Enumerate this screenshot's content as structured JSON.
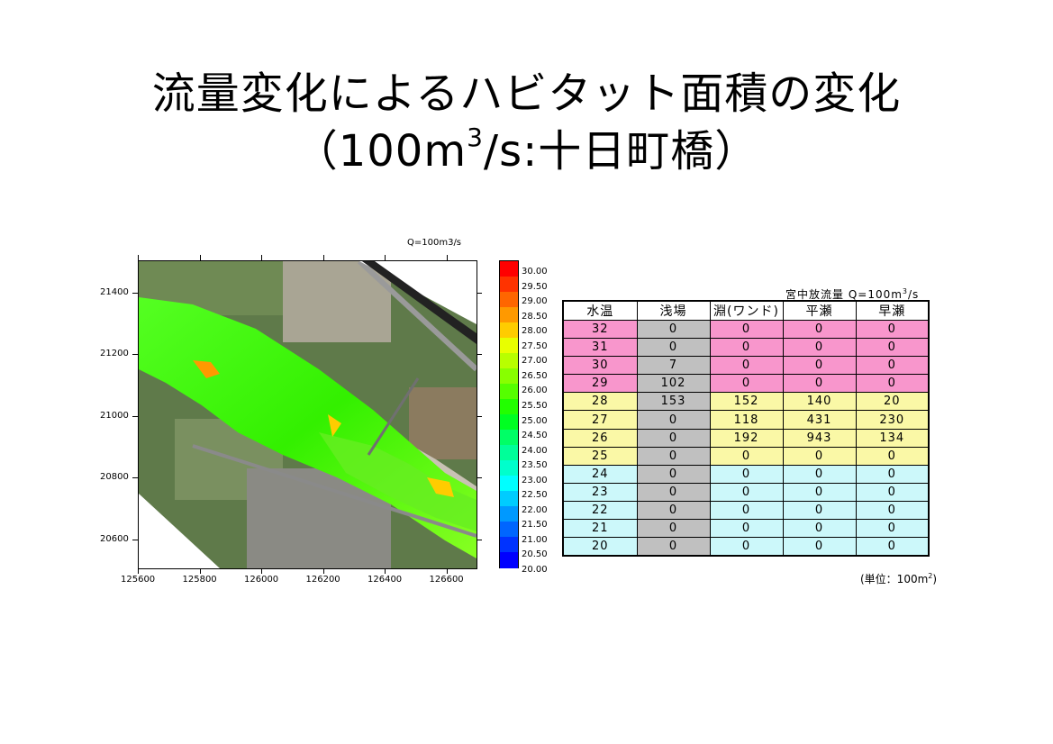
{
  "title": {
    "line1": "流量変化によるハビタット面積の変化",
    "line2_prefix": "（100m",
    "line2_sup": "3",
    "line2_suffix": "/s:十日町橋）"
  },
  "map": {
    "discharge_label": "Q=100m3/s",
    "x_ticks": [
      "125600",
      "125800",
      "126000",
      "126200",
      "126400",
      "126600"
    ],
    "y_ticks": [
      "21400",
      "21200",
      "21000",
      "20800",
      "20600"
    ]
  },
  "legend": {
    "labels": [
      "30.00",
      "29.50",
      "29.00",
      "28.50",
      "28.00",
      "27.50",
      "27.00",
      "26.50",
      "26.00",
      "25.50",
      "25.00",
      "24.50",
      "24.00",
      "23.50",
      "23.00",
      "22.50",
      "22.00",
      "21.50",
      "21.00",
      "20.50",
      "20.00"
    ],
    "colors": [
      "#ff0000",
      "#ff3300",
      "#ff6600",
      "#ff9900",
      "#ffcc00",
      "#e8ff00",
      "#b8ff00",
      "#88ff00",
      "#55ff00",
      "#22ff00",
      "#00ff22",
      "#00ff66",
      "#00ff99",
      "#00ffcc",
      "#00ffff",
      "#00ccff",
      "#0099ff",
      "#0066ff",
      "#0033ff",
      "#0000ff"
    ]
  },
  "table": {
    "caption_prefix": "宮中放流量  Q=100m",
    "caption_sup": "3",
    "caption_suffix": "/s",
    "headers": [
      "水温",
      "浅場",
      "淵(ワンド)",
      "平瀬",
      "早瀬"
    ],
    "rows": [
      [
        "32",
        "0",
        "0",
        "0",
        "0"
      ],
      [
        "31",
        "0",
        "0",
        "0",
        "0"
      ],
      [
        "30",
        "7",
        "0",
        "0",
        "0"
      ],
      [
        "29",
        "102",
        "0",
        "0",
        "0"
      ],
      [
        "28",
        "153",
        "152",
        "140",
        "20"
      ],
      [
        "27",
        "0",
        "118",
        "431",
        "230"
      ],
      [
        "26",
        "0",
        "192",
        "943",
        "134"
      ],
      [
        "25",
        "0",
        "0",
        "0",
        "0"
      ],
      [
        "24",
        "0",
        "0",
        "0",
        "0"
      ],
      [
        "23",
        "0",
        "0",
        "0",
        "0"
      ],
      [
        "22",
        "0",
        "0",
        "0",
        "0"
      ],
      [
        "21",
        "0",
        "0",
        "0",
        "0"
      ],
      [
        "20",
        "0",
        "0",
        "0",
        "0"
      ]
    ],
    "unit_prefix": "(単位：100m",
    "unit_sup": "2",
    "unit_suffix": ")"
  },
  "colors": {
    "pink_band": "#f896cc",
    "yellow_band": "#faf8a6",
    "cyan_band": "#ccf8fa",
    "shallow_column": "#c0c0c0"
  }
}
